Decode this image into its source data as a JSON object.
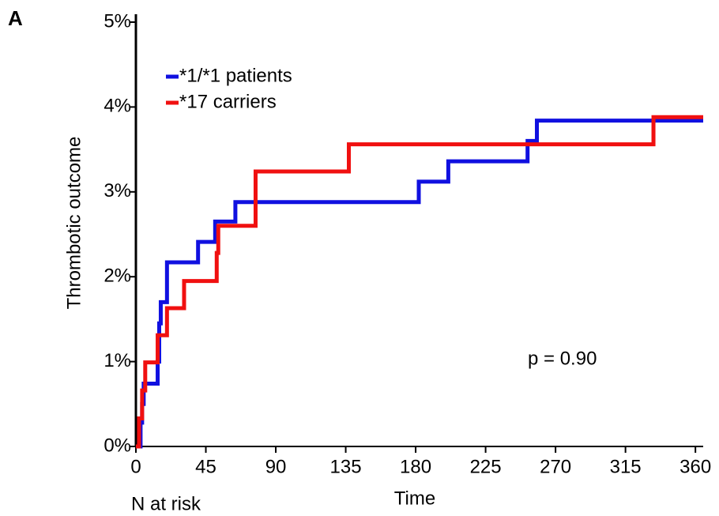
{
  "chart_data": {
    "type": "step",
    "panel_label": "A",
    "xlabel": "Time",
    "ylabel": "Thrombotic outcome",
    "annotations": [
      "p = 0.90",
      "N at risk"
    ],
    "series": [
      {
        "name": "*1/*1 patients",
        "color": "#1010e0",
        "x": [
          0,
          3,
          4,
          5,
          14,
          15,
          16,
          20,
          40,
          51,
          64,
          182,
          201,
          252,
          258
        ],
        "values": [
          0,
          0.28,
          0.5,
          0.74,
          1.0,
          1.45,
          1.7,
          2.17,
          2.41,
          2.65,
          2.88,
          3.12,
          3.36,
          3.6,
          3.84
        ]
      },
      {
        "name": "*17 carriers",
        "color": "#f01010",
        "x": [
          0,
          2,
          4,
          6,
          14,
          20,
          31,
          52,
          53,
          77,
          137,
          333
        ],
        "values": [
          0,
          0.33,
          0.66,
          0.99,
          1.31,
          1.63,
          1.95,
          2.28,
          2.6,
          3.24,
          3.56,
          3.88
        ]
      }
    ],
    "xlim": [
      0,
      365
    ],
    "xticks": [
      0,
      45,
      90,
      135,
      180,
      225,
      270,
      315,
      360
    ],
    "ylim": [
      0,
      5
    ],
    "yticks": [
      {
        "value": 0,
        "label": "0%"
      },
      {
        "value": 1,
        "label": "1%"
      },
      {
        "value": 2,
        "label": "2%"
      },
      {
        "value": 3,
        "label": "3%"
      },
      {
        "value": 4,
        "label": "4%"
      },
      {
        "value": 5,
        "label": "5%"
      }
    ],
    "legend": "upper-left"
  }
}
